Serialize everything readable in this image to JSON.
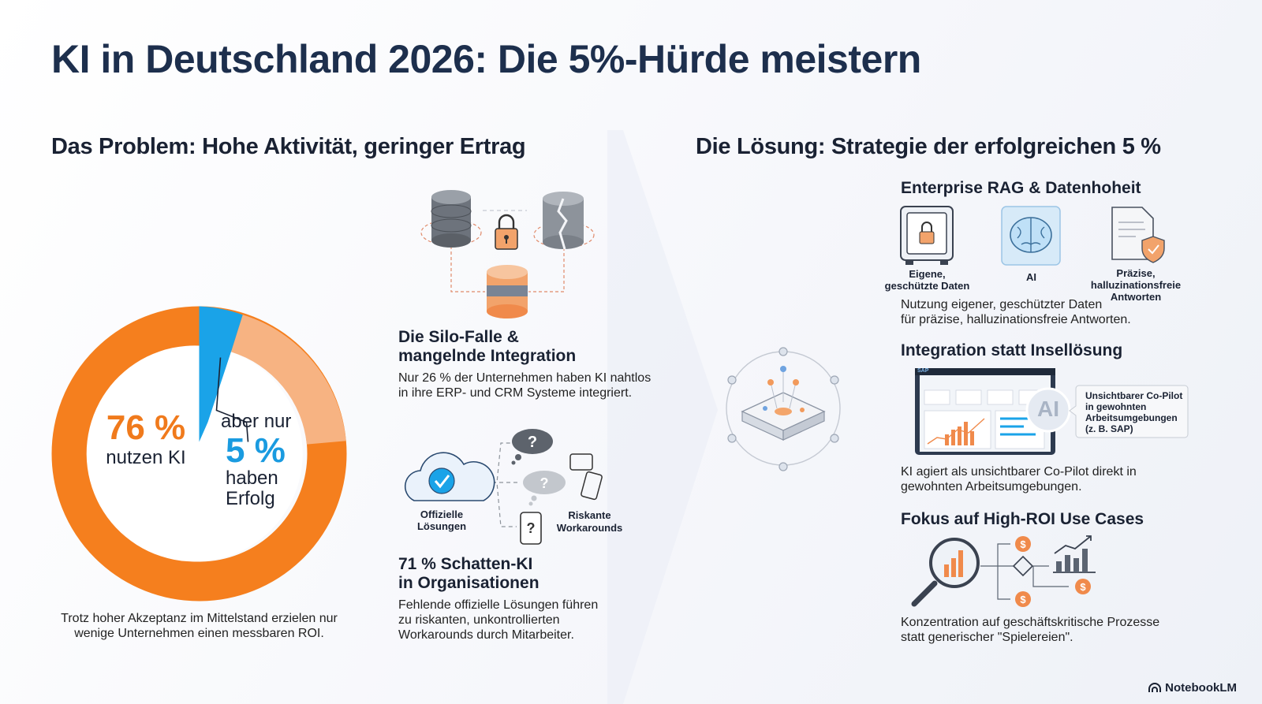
{
  "title": "KI in Deutschland 2026: Die 5%-Hürde meistern",
  "problem": {
    "heading": "Das Problem: Hohe Aktivität, geringer Ertrag",
    "donut": {
      "segments": [
        {
          "label": "haben Erfolg",
          "value": 5,
          "color": "#1a9be0"
        },
        {
          "label": "nutzen KI",
          "value": 71,
          "color": "#f7b382"
        },
        {
          "label": "rest",
          "value": 24,
          "color": "#f7b382"
        }
      ],
      "used_pct": "76 %",
      "used_label": "nutzen KI",
      "success_prefix": "aber nur",
      "success_pct": "5 %",
      "success_label_1": "haben",
      "success_label_2": "Erfolg",
      "caption_1": "Trotz hoher Akzeptanz im Mittelstand erzielen nur",
      "caption_2": "wenige Unternehmen einen messbaren ROI."
    },
    "silo": {
      "heading_1": "Die Silo-Falle &",
      "heading_2": "mangelnde Integration",
      "text_1": "Nur 26 % der Unternehmen haben KI nahtlos",
      "text_2": "in ihre ERP- und CRM Systeme integriert."
    },
    "shadow": {
      "official_label_1": "Offizielle",
      "official_label_2": "Lösungen",
      "risky_label_1": "Riskante",
      "risky_label_2": "Workarounds",
      "heading_1": "71 % Schatten-KI",
      "heading_2": "in Organisationen",
      "text_1": "Fehlende offizielle Lösungen führen",
      "text_2": "zu riskanten, unkontrollierten",
      "text_3": "Workarounds durch Mitarbeiter."
    }
  },
  "solution": {
    "heading": "Die Lösung: Strategie der erfolgreichen 5 %",
    "rag": {
      "heading": "Enterprise RAG & Datenhoheit",
      "icon1_label_1": "Eigene,",
      "icon1_label_2": "geschützte Daten",
      "icon2_label": "AI",
      "icon3_label_1": "Präzise,",
      "icon3_label_2": "halluzinationsfreie",
      "icon3_label_3": "Antworten",
      "text_1": "Nutzung eigener, geschützter Daten",
      "text_2": "für präzise, halluzinationsfreie Antworten."
    },
    "integration": {
      "heading": "Integration statt Insellösung",
      "screen_badge": "SAP",
      "ai_badge": "AI",
      "callout_1": "Unsichtbarer Co-Pilot",
      "callout_2": "in gewohnten",
      "callout_3": "Arbeitsumgebungen",
      "callout_4": "(z. B. SAP)",
      "text_1": "KI agiert als unsichtbarer Co-Pilot direkt in",
      "text_2": "gewohnten Arbeitsumgebungen."
    },
    "roi": {
      "heading": "Fokus auf High-ROI Use Cases",
      "coin_symbol": "$",
      "text_1": "Konzentration auf geschäftskritische Prozesse",
      "text_2": "statt generischer \"Spielereien\"."
    }
  },
  "brand": "NotebookLM",
  "colors": {
    "orange": "#f07a1c",
    "light_orange": "#f7b382",
    "blue": "#1a9be0",
    "navy": "#1d2f4d"
  }
}
